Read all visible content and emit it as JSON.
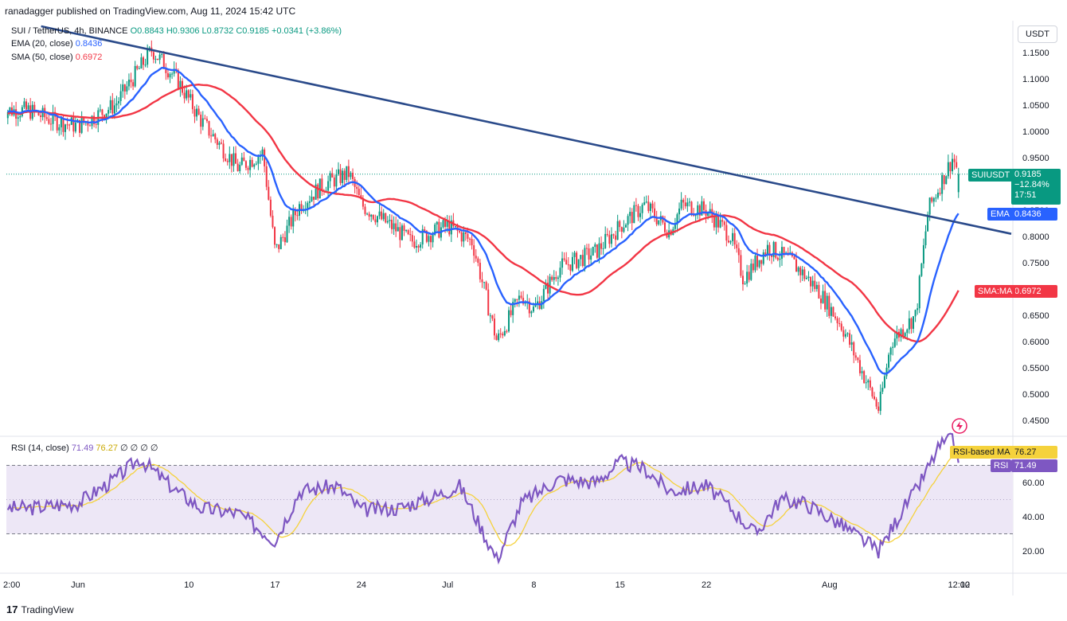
{
  "header": {
    "published": "ranadagger published on TradingView.com, Aug 11, 2024 15:42 UTC"
  },
  "legend": {
    "symbol": "SUI / TetherUS, 4h, BINANCE",
    "ohlc": "O0.8843 H0.9306 L0.8732 C0.9185 +0.0341 (+3.86%)",
    "ema_label": "EMA (20, close)",
    "ema_value": "0.8436",
    "sma_label": "SMA (50, close)",
    "sma_value": "0.6972",
    "rsi_label": "RSI (14, close)",
    "rsi_value": "71.49",
    "rsi_ma_value": "76.27",
    "rsi_extra": "∅ ∅ ∅ ∅"
  },
  "currency": "USDT",
  "tags": {
    "symbol_name": "SUIUSDT",
    "symbol_price": "0.9185",
    "symbol_change": "−12.84%",
    "symbol_timer": "17:51",
    "ema_name": "EMA",
    "ema_price": "0.8436",
    "sma_name": "SMA:MA",
    "sma_price": "0.6972",
    "rsima_name": "RSI-based MA",
    "rsima_value": "76.27",
    "rsi_name": "RSI",
    "rsi_value": "71.49"
  },
  "footer": {
    "brand": "TradingView"
  },
  "colors": {
    "up": "#089981",
    "down": "#f23645",
    "ema": "#2962ff",
    "sma": "#f23645",
    "trend": "#2a4a8a",
    "rsi": "#7e57c2",
    "rsi_ma": "#f5d23c",
    "rsi_band": "#ede7f6"
  },
  "chart_data": [
    {
      "type": "candlestick",
      "title": "SUI / TetherUS, 4h, BINANCE",
      "ylim": [
        0.42,
        1.19
      ],
      "yticks": [
        0.45,
        0.5,
        0.55,
        0.6,
        0.65,
        0.7,
        0.75,
        0.8,
        0.85,
        0.9,
        0.95,
        1.0,
        1.05,
        1.1,
        1.15
      ],
      "xtick_labels": [
        "2:00",
        "Jun",
        "10",
        "17",
        "24",
        "Jul",
        "8",
        "15",
        "22",
        "Aug",
        "12:00",
        "12"
      ],
      "last": {
        "open": 0.8843,
        "high": 0.9306,
        "low": 0.8732,
        "close": 0.9185
      },
      "price_anchors": [
        {
          "date": "May 28",
          "price": 1.04
        },
        {
          "date": "May 30",
          "price": 1.02
        },
        {
          "date": "Jun 1",
          "price": 1.01
        },
        {
          "date": "Jun 4",
          "price": 1.05
        },
        {
          "date": "Jun 6",
          "price": 1.12
        },
        {
          "date": "Jun 7",
          "price": 1.155
        },
        {
          "date": "Jun 9",
          "price": 1.1
        },
        {
          "date": "Jun 11",
          "price": 1.02
        },
        {
          "date": "Jun 14",
          "price": 0.93
        },
        {
          "date": "Jun 16",
          "price": 0.96
        },
        {
          "date": "Jun 17",
          "price": 0.77
        },
        {
          "date": "Jun 19",
          "price": 0.86
        },
        {
          "date": "Jun 21",
          "price": 0.9
        },
        {
          "date": "Jun 23",
          "price": 0.92
        },
        {
          "date": "Jun 24",
          "price": 0.86
        },
        {
          "date": "Jun 27",
          "price": 0.81
        },
        {
          "date": "Jun 28",
          "price": 0.79
        },
        {
          "date": "Jul 1",
          "price": 0.82
        },
        {
          "date": "Jul 3",
          "price": 0.79
        },
        {
          "date": "Jul 5",
          "price": 0.6
        },
        {
          "date": "Jul 7",
          "price": 0.69
        },
        {
          "date": "Jul 8",
          "price": 0.66
        },
        {
          "date": "Jul 10",
          "price": 0.74
        },
        {
          "date": "Jul 13",
          "price": 0.77
        },
        {
          "date": "Jul 15",
          "price": 0.82
        },
        {
          "date": "Jul 17",
          "price": 0.86
        },
        {
          "date": "Jul 19",
          "price": 0.81
        },
        {
          "date": "Jul 20",
          "price": 0.86
        },
        {
          "date": "Jul 22",
          "price": 0.85
        },
        {
          "date": "Jul 24",
          "price": 0.8
        },
        {
          "date": "Jul 25",
          "price": 0.72
        },
        {
          "date": "Jul 27",
          "price": 0.78
        },
        {
          "date": "Jul 29",
          "price": 0.75
        },
        {
          "date": "Jul 31",
          "price": 0.7
        },
        {
          "date": "Aug 2",
          "price": 0.63
        },
        {
          "date": "Aug 5",
          "price": 0.47
        },
        {
          "date": "Aug 6",
          "price": 0.6
        },
        {
          "date": "Aug 8",
          "price": 0.65
        },
        {
          "date": "Aug 9",
          "price": 0.85
        },
        {
          "date": "Aug 10",
          "price": 0.9
        },
        {
          "date": "Aug 11",
          "price": 0.95
        },
        {
          "date": "Aug 11 12:00",
          "price": 0.9185
        }
      ],
      "ema20_end": 0.8436,
      "sma50_end": 0.6972,
      "trendline": {
        "start": {
          "date": "May 29",
          "price": 1.2
        },
        "end": {
          "date": "Aug 12",
          "price": 0.78
        }
      }
    },
    {
      "type": "line",
      "title": "RSI (14, close)",
      "ylim": [
        10,
        88
      ],
      "yticks": [
        20,
        40,
        60
      ],
      "bands": [
        30,
        70
      ],
      "series": [
        {
          "name": "RSI",
          "last": 71.49
        },
        {
          "name": "RSI-based MA",
          "last": 76.27
        }
      ],
      "rsi_anchors": [
        {
          "date": "May 28",
          "value": 45
        },
        {
          "date": "Jun 1",
          "value": 48
        },
        {
          "date": "Jun 4",
          "value": 62
        },
        {
          "date": "Jun 6",
          "value": 74
        },
        {
          "date": "Jun 9",
          "value": 55
        },
        {
          "date": "Jun 11",
          "value": 45
        },
        {
          "date": "Jun 14",
          "value": 42
        },
        {
          "date": "Jun 17",
          "value": 26
        },
        {
          "date": "Jun 19",
          "value": 55
        },
        {
          "date": "Jun 22",
          "value": 58
        },
        {
          "date": "Jun 24",
          "value": 44
        },
        {
          "date": "Jun 27",
          "value": 45
        },
        {
          "date": "Jun 30",
          "value": 52
        },
        {
          "date": "Jul 2",
          "value": 58
        },
        {
          "date": "Jul 5",
          "value": 15
        },
        {
          "date": "Jul 7",
          "value": 48
        },
        {
          "date": "Jul 10",
          "value": 62
        },
        {
          "date": "Jul 13",
          "value": 60
        },
        {
          "date": "Jul 15",
          "value": 72
        },
        {
          "date": "Jul 17",
          "value": 68
        },
        {
          "date": "Jul 19",
          "value": 55
        },
        {
          "date": "Jul 22",
          "value": 58
        },
        {
          "date": "Jul 24",
          "value": 45
        },
        {
          "date": "Jul 26",
          "value": 30
        },
        {
          "date": "Jul 28",
          "value": 50
        },
        {
          "date": "Jul 30",
          "value": 48
        },
        {
          "date": "Aug 2",
          "value": 35
        },
        {
          "date": "Aug 5",
          "value": 20
        },
        {
          "date": "Aug 7",
          "value": 45
        },
        {
          "date": "Aug 8",
          "value": 55
        },
        {
          "date": "Aug 10",
          "value": 82
        },
        {
          "date": "Aug 11",
          "value": 85
        },
        {
          "date": "Aug 11 12:00",
          "value": 71.49
        }
      ]
    }
  ]
}
